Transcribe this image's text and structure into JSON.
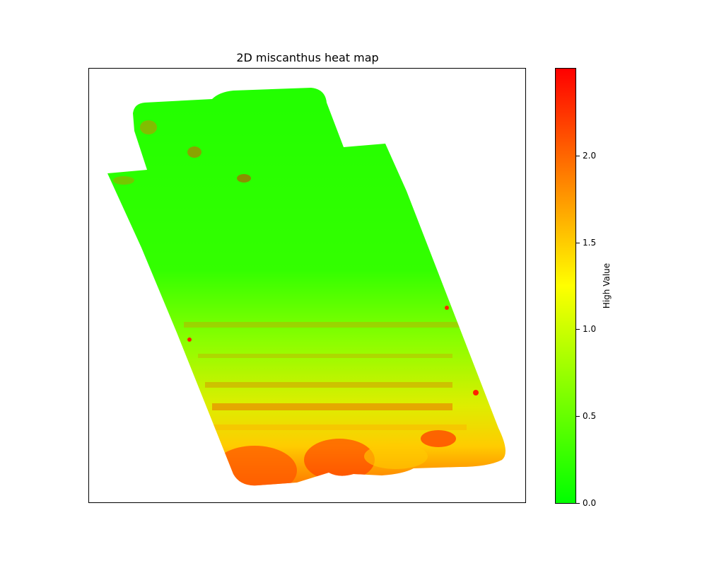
{
  "chart_data": {
    "type": "heatmap",
    "title": "2D miscanthus heat map",
    "xlabel": "",
    "ylabel": "",
    "x_ticks": [],
    "y_ticks": [],
    "colorbar": {
      "label": "High Value",
      "range": [
        0.0,
        2.5
      ],
      "ticks": [
        0.0,
        0.5,
        1.0,
        1.5,
        2.0
      ],
      "tick_labels": [
        "0.0",
        "0.5",
        "1.0",
        "1.5",
        "2.0"
      ],
      "colormap": [
        "#00ff00",
        "#ffff00",
        "#ff0000"
      ]
    },
    "value_pattern": {
      "north_region": 0.3,
      "middle_region": 0.6,
      "lower_region": 1.3,
      "southern_region": 2.0
    }
  }
}
